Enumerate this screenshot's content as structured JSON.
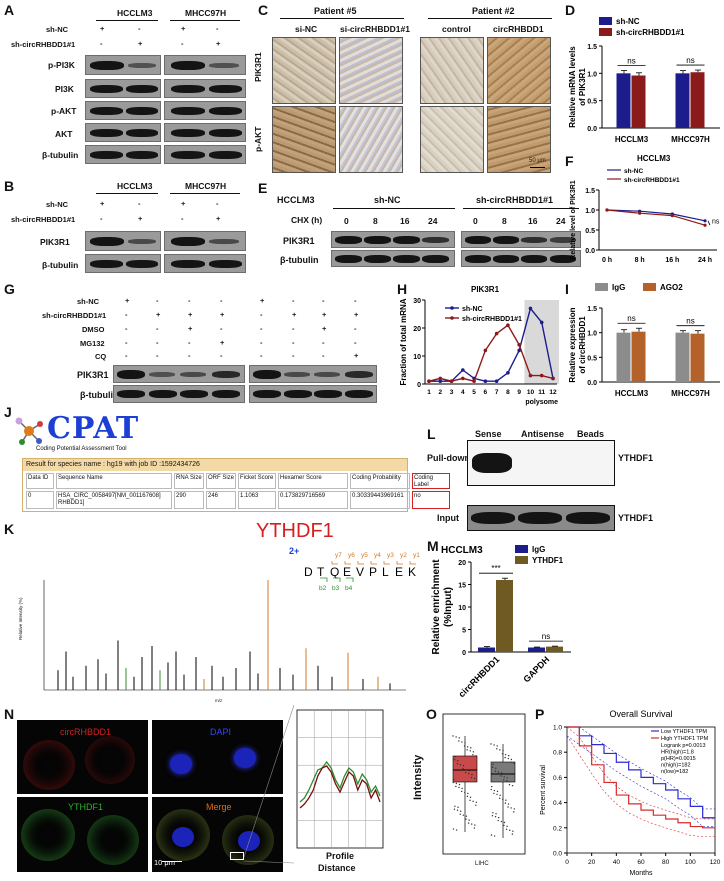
{
  "figure": {
    "panels": [
      "A",
      "B",
      "C",
      "D",
      "E",
      "F",
      "G",
      "H",
      "I",
      "J",
      "K",
      "L",
      "M",
      "N",
      "O",
      "P"
    ]
  },
  "panel_A": {
    "cell_lines": [
      "HCCLM3",
      "MHCC97H"
    ],
    "row_labels": [
      "sh-NC",
      "sh-circRHBDD1#1"
    ],
    "sign_sh_nc": [
      "+",
      "-",
      "+",
      "-"
    ],
    "sign_sh_circ": [
      "-",
      "+",
      "-",
      "+"
    ],
    "blots": [
      "p-PI3K",
      "PI3K",
      "p-AKT",
      "AKT",
      "β-tubulin"
    ]
  },
  "panel_B": {
    "cell_lines": [
      "HCCLM3",
      "MHCC97H"
    ],
    "row_labels": [
      "sh-NC",
      "sh-circRHBDD1#1"
    ],
    "sign_sh_nc": [
      "+",
      "-",
      "+",
      "-"
    ],
    "sign_sh_circ": [
      "-",
      "+",
      "-",
      "+"
    ],
    "blots": [
      "PIK3R1",
      "β-tubulin"
    ]
  },
  "panel_C": {
    "patients": [
      "Patient #5",
      "Patient #2"
    ],
    "columns": [
      "si-NC",
      "si-circRHBDD1#1",
      "control",
      "circRHBDD1"
    ],
    "rows": [
      "PIK3R1",
      "p-AKT"
    ],
    "scale": "50 μm"
  },
  "panel_E": {
    "cell_line": "HCCLM3",
    "groups": [
      "sh-NC",
      "sh-circRHBDD1#1"
    ],
    "chx_label": "CHX (h)",
    "times": [
      "0",
      "8",
      "16",
      "24",
      "0",
      "8",
      "16",
      "24"
    ],
    "blots": [
      "PIK3R1",
      "β-tubulin"
    ]
  },
  "panel_G": {
    "row_labels": [
      "sh-NC",
      "sh-circRHBDD1#1",
      "DMSO",
      "MG132",
      "CQ"
    ],
    "signs": [
      [
        "+",
        "-",
        "-",
        "-",
        "+",
        "-",
        "-",
        "-"
      ],
      [
        "-",
        "+",
        "+",
        "+",
        "-",
        "+",
        "+",
        "+"
      ],
      [
        "-",
        "-",
        "+",
        "-",
        "-",
        "-",
        "+",
        "-"
      ],
      [
        "-",
        "-",
        "-",
        "+",
        "-",
        "-",
        "-",
        "-"
      ],
      [
        "-",
        "-",
        "-",
        "-",
        "-",
        "-",
        "-",
        "+"
      ]
    ],
    "blots": [
      "PIK3R1",
      "β-tubulin"
    ]
  },
  "panel_J": {
    "logo": "CPAT",
    "logo_sub": "Coding Potential Assessment Tool",
    "result_header": "Result for species name : hg19 with job ID :1592434726",
    "columns": [
      "Data ID",
      "Sequence Name",
      "RNA Size",
      "ORF Size",
      "Ficket Score",
      "Hexamer Score",
      "Coding Probability",
      "Coding Label"
    ],
    "row": [
      "0",
      "HSA_CIRC_0058497[NM_001167608] RHBDD1]",
      "290",
      "246",
      "1.1063",
      "0.173829716569",
      "0.30339443969161",
      "no"
    ]
  },
  "panel_K": {
    "title": "YTHDF1",
    "charge": "2+",
    "sequence": [
      "D",
      "T",
      "Q",
      "E",
      "V",
      "P",
      "L",
      "E",
      "K"
    ],
    "y_ions": [
      "y7",
      "y6",
      "y5",
      "y4",
      "y3",
      "y2",
      "y1"
    ],
    "b_ions": [
      "b2",
      "b3",
      "b4"
    ],
    "y_axis": "Relative Intensity (%)",
    "x_axis": "m/z"
  },
  "panel_L": {
    "columns": [
      "Sense",
      "Antisense",
      "Beads"
    ],
    "rows": [
      "Pull-down",
      "Input"
    ],
    "protein": "YTHDF1"
  },
  "panel_N": {
    "channels": [
      "circRHBDD1",
      "DAPI",
      "YTHDF1",
      "Merge"
    ],
    "scale": "10 μm",
    "profile_x": "Distance",
    "profile_y": "Profile",
    "intensity_label": "Intensity"
  },
  "panel_O": {
    "x_label": "LIHC"
  },
  "chart_data": [
    {
      "id": "D",
      "type": "bar",
      "categories": [
        "HCCLM3",
        "MHCC97H"
      ],
      "series": [
        {
          "name": "sh-NC",
          "values": [
            1.0,
            1.0
          ],
          "color": "#1c1c8c"
        },
        {
          "name": "sh-circRHBDD1#1",
          "values": [
            0.96,
            1.02
          ],
          "color": "#8b1a1a"
        }
      ],
      "errors": [
        [
          0.05,
          0.05
        ],
        [
          0.05,
          0.04
        ]
      ],
      "sig": [
        "ns",
        "ns"
      ],
      "ylabel": "Relative mRNA levels of PIK3R1",
      "ylim": [
        0,
        1.5
      ],
      "yticks": [
        "0.0",
        "0.5",
        "1.0",
        "1.5"
      ]
    },
    {
      "id": "F",
      "type": "line",
      "title": "HCCLM3",
      "x": [
        "0 h",
        "8 h",
        "16 h",
        "24 h"
      ],
      "series": [
        {
          "name": "sh-NC",
          "values": [
            1.0,
            0.97,
            0.9,
            0.73
          ],
          "color": "#1c1c8c"
        },
        {
          "name": "sh-circRHBDD1#1",
          "values": [
            1.0,
            0.92,
            0.86,
            0.62
          ],
          "color": "#8b1a1a"
        }
      ],
      "sig": "ns",
      "ylabel": "Relative level of PIK3R1",
      "ylim": [
        0,
        1.5
      ],
      "yticks": [
        "0.0",
        "0.5",
        "1.0",
        "1.5"
      ]
    },
    {
      "id": "H",
      "type": "line",
      "title": "PIK3R1",
      "x": [
        "1",
        "2",
        "3",
        "4",
        "5",
        "6",
        "7",
        "8",
        "9",
        "10",
        "11",
        "12"
      ],
      "series": [
        {
          "name": "sh-NC",
          "values": [
            1,
            1,
            1,
            5,
            2,
            1,
            1,
            4,
            12,
            27,
            22,
            2
          ],
          "color": "#1c1c8c"
        },
        {
          "name": "sh-circRHBDD1#1",
          "values": [
            1,
            2,
            1,
            2,
            1,
            12,
            18,
            21,
            14,
            3,
            3,
            2
          ],
          "color": "#8b1a1a"
        }
      ],
      "shade": {
        "from": "10",
        "to": "12",
        "label": "polysome"
      },
      "ylabel": "Fraction of total mRNA",
      "ylim": [
        0,
        30
      ],
      "yticks": [
        "0",
        "10",
        "20",
        "30"
      ]
    },
    {
      "id": "I",
      "type": "bar",
      "categories": [
        "HCCLM3",
        "MHCC97H"
      ],
      "series": [
        {
          "name": "IgG",
          "values": [
            1.0,
            1.0
          ],
          "color": "#8c8c8c"
        },
        {
          "name": "AGO2",
          "values": [
            1.02,
            0.98
          ],
          "color": "#b5622a"
        }
      ],
      "errors": [
        [
          0.06,
          0.04
        ],
        [
          0.07,
          0.06
        ]
      ],
      "sig": [
        "ns",
        "ns"
      ],
      "ylabel": "Relative expression of circRHBDD1",
      "ylim": [
        0,
        1.5
      ],
      "yticks": [
        "0.0",
        "0.5",
        "1.0",
        "1.5"
      ]
    },
    {
      "id": "M",
      "type": "bar",
      "title": "HCCLM3",
      "categories": [
        "circRHBDD1",
        "GAPDH"
      ],
      "series": [
        {
          "name": "IgG",
          "values": [
            1.0,
            1.0
          ],
          "color": "#1c1c8c"
        },
        {
          "name": "YTHDF1",
          "values": [
            16.0,
            1.2
          ],
          "color": "#6e5a22"
        }
      ],
      "errors": [
        [
          0.2,
          0.1
        ],
        [
          0.4,
          0.1
        ]
      ],
      "sig": [
        "***",
        "ns"
      ],
      "ylabel": "Relative enrichment (%Input)",
      "ylim": [
        0,
        20
      ],
      "yticks": [
        "0",
        "5",
        "10",
        "15",
        "20"
      ]
    },
    {
      "id": "P",
      "type": "line",
      "title": "Overall Survival",
      "legend": [
        "Low YTHDF1 TPM",
        "High YTHDF1 TPM"
      ],
      "stats": [
        "Logrank p=0.0013",
        "HR(high)=1.8",
        "p(HR)=0.0015",
        "n(high)=182",
        "n(low)=182"
      ],
      "xlabel": "Months",
      "ylabel": "Percent survival",
      "xlim": [
        0,
        120
      ],
      "ylim": [
        0,
        1.0
      ],
      "xticks": [
        "0",
        "20",
        "40",
        "60",
        "80",
        "100",
        "120"
      ],
      "yticks": [
        "0.0",
        "0.2",
        "0.4",
        "0.6",
        "0.8",
        "1.0"
      ],
      "series": [
        {
          "name": "Low YTHDF1 TPM",
          "x": [
            0,
            10,
            20,
            30,
            40,
            50,
            60,
            70,
            80,
            90,
            100,
            110,
            120
          ],
          "values": [
            1.0,
            0.93,
            0.86,
            0.79,
            0.72,
            0.66,
            0.6,
            0.55,
            0.5,
            0.43,
            0.37,
            0.28,
            0.28
          ],
          "color": "#2b2bd6"
        },
        {
          "name": "High YTHDF1 TPM",
          "x": [
            0,
            10,
            20,
            30,
            40,
            50,
            60,
            70,
            80,
            90,
            100,
            110,
            120
          ],
          "values": [
            1.0,
            0.85,
            0.7,
            0.56,
            0.46,
            0.39,
            0.34,
            0.3,
            0.27,
            0.24,
            0.21,
            0.2,
            0.2
          ],
          "color": "#d62b2b"
        }
      ]
    }
  ]
}
